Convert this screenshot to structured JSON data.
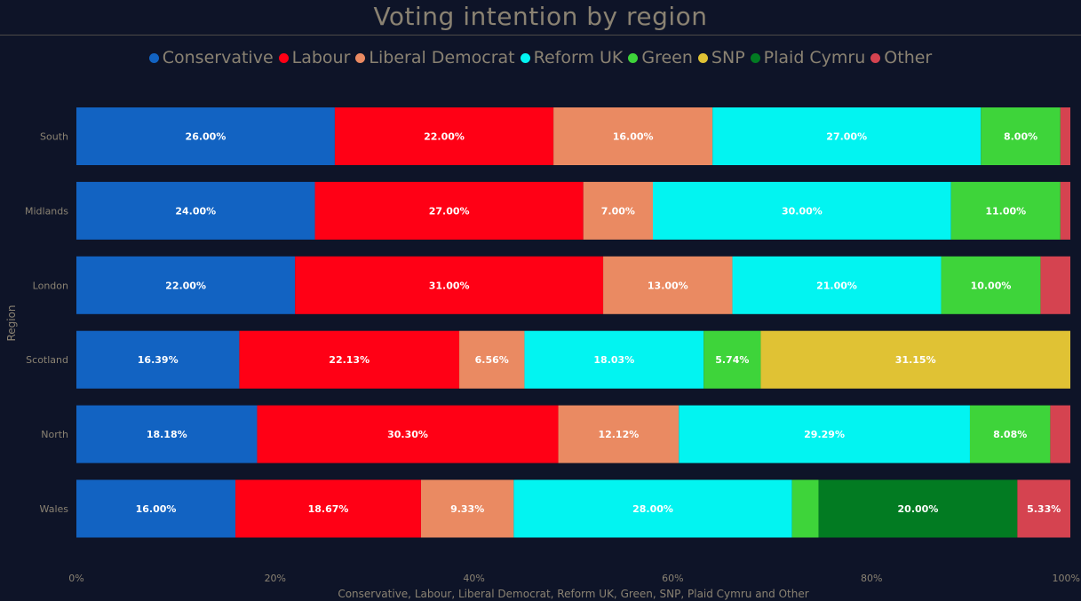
{
  "chart_data": {
    "type": "bar",
    "orientation": "horizontal",
    "stacked": "percent",
    "title": "Voting intention by region",
    "xlabel": "Conservative, Labour, Liberal Democrat, Reform UK, Green, SNP, Plaid Cymru and Other",
    "ylabel": "Region",
    "xlim": [
      0,
      100
    ],
    "x_ticks": [
      "0%",
      "20%",
      "40%",
      "60%",
      "80%",
      "100%"
    ],
    "legend_position": "top",
    "grid": false,
    "categories": [
      "South",
      "Midlands",
      "London",
      "Scotland",
      "North",
      "Wales"
    ],
    "series": [
      {
        "name": "Conservative",
        "color": "#1263c2",
        "values": [
          26.0,
          24.0,
          22.0,
          16.39,
          18.18,
          16.0
        ],
        "labels": [
          "26.00%",
          "24.00%",
          "22.00%",
          "16.39%",
          "18.18%",
          "16.00%"
        ]
      },
      {
        "name": "Labour",
        "color": "#ff0015",
        "values": [
          22.0,
          27.0,
          31.0,
          22.13,
          30.3,
          18.67
        ],
        "labels": [
          "22.00%",
          "27.00%",
          "31.00%",
          "22.13%",
          "30.30%",
          "18.67%"
        ]
      },
      {
        "name": "Liberal Democrat",
        "color": "#ea8a62",
        "values": [
          16.0,
          7.0,
          13.0,
          6.56,
          12.12,
          9.33
        ],
        "labels": [
          "16.00%",
          "7.00%",
          "13.00%",
          "6.56%",
          "12.12%",
          "9.33%"
        ]
      },
      {
        "name": "Reform UK",
        "color": "#02f4f1",
        "values": [
          27.0,
          30.0,
          21.0,
          18.03,
          29.29,
          28.0
        ],
        "labels": [
          "27.00%",
          "30.00%",
          "21.00%",
          "18.03%",
          "29.29%",
          "28.00%"
        ]
      },
      {
        "name": "Green",
        "color": "#3ed43a",
        "values": [
          8.0,
          11.0,
          10.0,
          5.74,
          8.08,
          2.67
        ],
        "labels": [
          "8.00%",
          "11.00%",
          "10.00%",
          "5.74%",
          "8.08%",
          ""
        ]
      },
      {
        "name": "SNP",
        "color": "#e0c234",
        "values": [
          0,
          0,
          0,
          31.15,
          0,
          0
        ],
        "labels": [
          "",
          "",
          "",
          "31.15%",
          "",
          ""
        ]
      },
      {
        "name": "Plaid Cymru",
        "color": "#027b22",
        "values": [
          0,
          0,
          0,
          0,
          0,
          20.0
        ],
        "labels": [
          "",
          "",
          "",
          "",
          "",
          "20.00%"
        ]
      },
      {
        "name": "Other",
        "color": "#d54350",
        "values": [
          1.0,
          1.0,
          3.0,
          0,
          2.02,
          5.33
        ],
        "labels": [
          "",
          "",
          "",
          "",
          "",
          "5.33%"
        ]
      }
    ]
  }
}
